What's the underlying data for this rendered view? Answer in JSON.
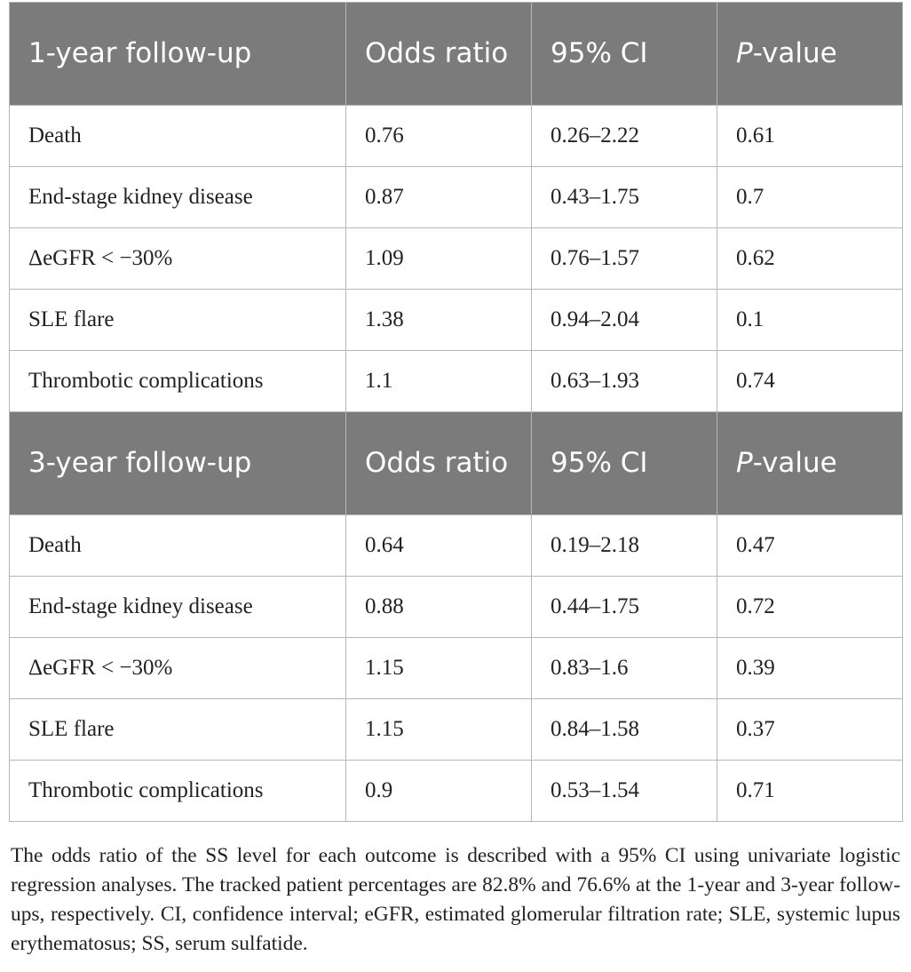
{
  "sections": [
    {
      "header": {
        "outcome": "1-year follow-up",
        "or": "Odds ratio",
        "ci": "95% CI",
        "p_italic": "P",
        "p_rest": "-value"
      },
      "rows": [
        {
          "outcome": "Death",
          "or": "0.76",
          "ci": "0.26–2.22",
          "p": "0.61"
        },
        {
          "outcome": "End-stage kidney disease",
          "or": "0.87",
          "ci": "0.43–1.75",
          "p": "0.7"
        },
        {
          "outcome": "ΔeGFR < −30%",
          "or": "1.09",
          "ci": "0.76–1.57",
          "p": "0.62"
        },
        {
          "outcome": "SLE flare",
          "or": "1.38",
          "ci": "0.94–2.04",
          "p": "0.1"
        },
        {
          "outcome": "Thrombotic complications",
          "or": "1.1",
          "ci": "0.63–1.93",
          "p": "0.74"
        }
      ]
    },
    {
      "header": {
        "outcome": "3-year follow-up",
        "or": "Odds ratio",
        "ci": "95% CI",
        "p_italic": "P",
        "p_rest": "-value"
      },
      "rows": [
        {
          "outcome": "Death",
          "or": "0.64",
          "ci": "0.19–2.18",
          "p": "0.47"
        },
        {
          "outcome": "End-stage kidney disease",
          "or": "0.88",
          "ci": "0.44–1.75",
          "p": "0.72"
        },
        {
          "outcome": "ΔeGFR < −30%",
          "or": "1.15",
          "ci": "0.83–1.6",
          "p": "0.39"
        },
        {
          "outcome": "SLE flare",
          "or": "1.15",
          "ci": "0.84–1.58",
          "p": "0.37"
        },
        {
          "outcome": "Thrombotic complications",
          "or": "0.9",
          "ci": "0.53–1.54",
          "p": "0.71"
        }
      ]
    }
  ],
  "caption": "The odds ratio of the SS level for each outcome is described with a 95% CI using univariate logistic regression analyses. The tracked patient percentages are 82.8% and 76.6% at the 1-year and 3-year follow-ups, respectively. CI, confidence interval; eGFR, estimated glomerular filtration rate; SLE, systemic lupus erythematosus; SS, serum sulfatide."
}
